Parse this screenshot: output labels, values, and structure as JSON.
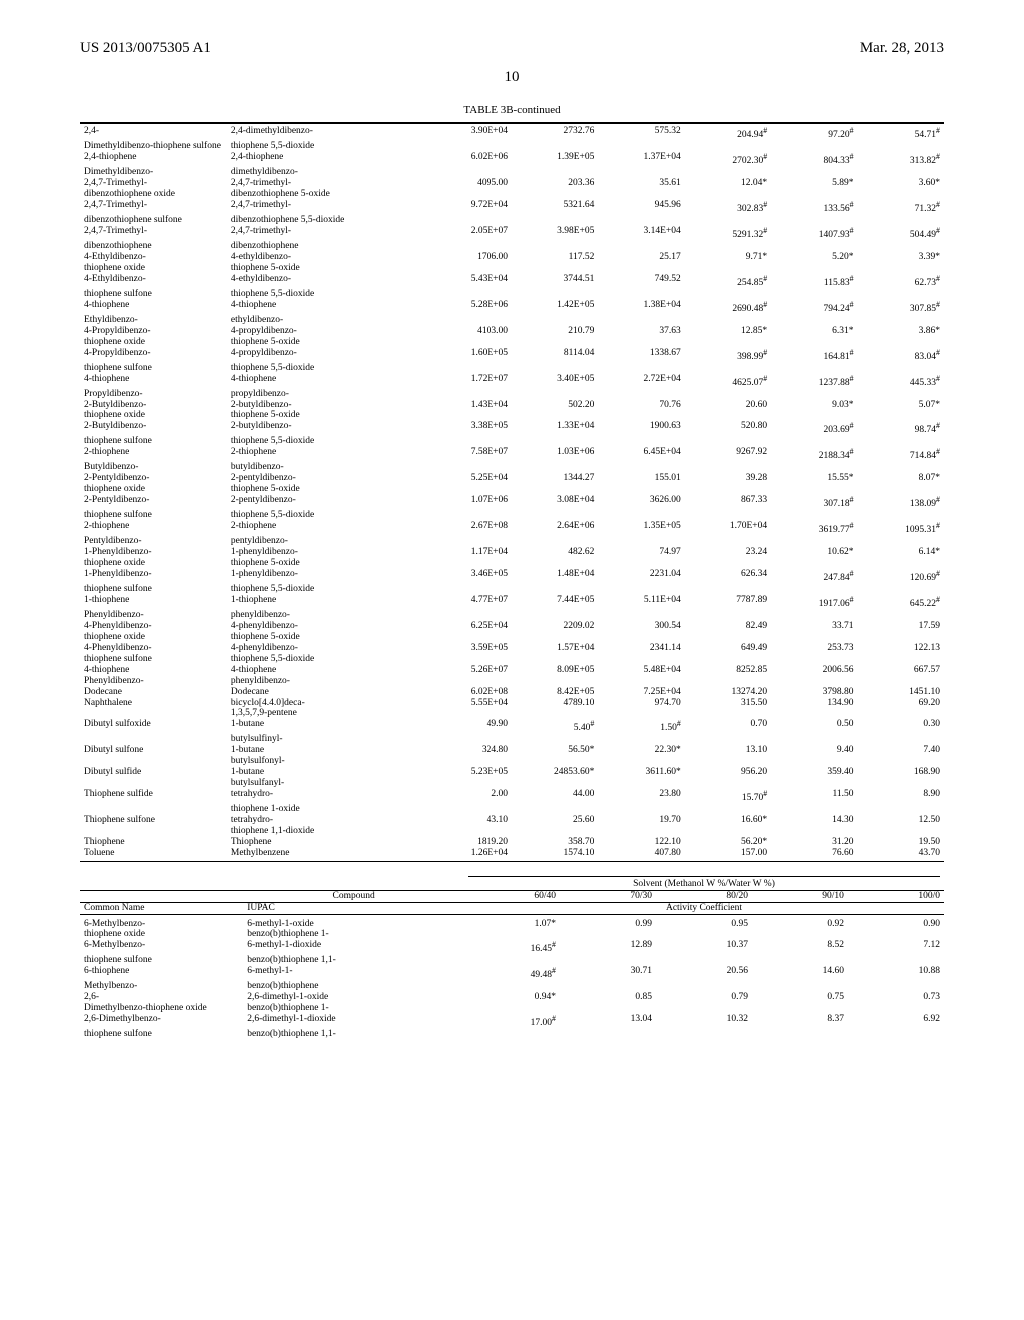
{
  "header": {
    "left": "US 2013/0075305 A1",
    "right": "Mar. 28, 2013"
  },
  "page_number": "10",
  "table_caption": "TABLE 3B-continued",
  "table1_rows": [
    {
      "c": "2,4-Dimethyldibenzo-thiophene sulfone",
      "i": "2,4-dimethyldibenzo-thiophene 5,5-dioxide",
      "v": [
        "3.90E+04",
        "2732.76",
        "575.32",
        "204.94#",
        "97.20#",
        "54.71#"
      ]
    },
    {
      "c": "2,4-Dimethyldibenzo-thiophene",
      "i": "2,4-dimethyldibenzo-thiophene",
      "v": [
        "6.02E+06",
        "1.39E+05",
        "1.37E+04",
        "2702.30#",
        "804.33#",
        "313.82#"
      ]
    },
    {
      "c": "2,4,7-Trimethyl-dibenzothiophene oxide",
      "i": "2,4,7-trimethyl-dibenzothiophene 5-oxide",
      "v": [
        "4095.00",
        "203.36",
        "35.61",
        "12.04*",
        "5.89*",
        "3.60*"
      ]
    },
    {
      "c": "2,4,7-Trimethyl-dibenzothiophene sulfone",
      "i": "2,4,7-trimethyl-dibenzothiophene 5,5-dioxide",
      "v": [
        "9.72E+04",
        "5321.64",
        "945.96",
        "302.83#",
        "133.56#",
        "71.32#"
      ]
    },
    {
      "c": "2,4,7-Trimethyl-dibenzothiophene",
      "i": "2,4,7-trimethyl-dibenzothiophene",
      "v": [
        "2.05E+07",
        "3.98E+05",
        "3.14E+04",
        "5291.32#",
        "1407.93#",
        "504.49#"
      ]
    },
    {
      "c": "4-Ethyldibenzo-thiophene oxide",
      "i": "4-ethyldibenzo-thiophene 5-oxide",
      "v": [
        "1706.00",
        "117.52",
        "25.17",
        "9.71*",
        "5.20*",
        "3.39*"
      ]
    },
    {
      "c": "4-Ethyldibenzo-thiophene sulfone",
      "i": "4-ethyldibenzo-thiophene 5,5-dioxide",
      "v": [
        "5.43E+04",
        "3744.51",
        "749.52",
        "254.85#",
        "115.83#",
        "62.73#"
      ]
    },
    {
      "c": "4-Ethyldibenzo-thiophene",
      "i": "4-ethyldibenzo-thiophene",
      "v": [
        "5.28E+06",
        "1.42E+05",
        "1.38E+04",
        "2690.48#",
        "794.24#",
        "307.85#"
      ]
    },
    {
      "c": "4-Propyldibenzo-thiophene oxide",
      "i": "4-propyldibenzo-thiophene 5-oxide",
      "v": [
        "4103.00",
        "210.79",
        "37.63",
        "12.85*",
        "6.31*",
        "3.86*"
      ]
    },
    {
      "c": "4-Propyldibenzo-thiophene sulfone",
      "i": "4-propyldibenzo-thiophene 5,5-dioxide",
      "v": [
        "1.60E+05",
        "8114.04",
        "1338.67",
        "398.99#",
        "164.81#",
        "83.04#"
      ]
    },
    {
      "c": "4-Propyldibenzo-thiophene",
      "i": "4-propyldibenzo-thiophene",
      "v": [
        "1.72E+07",
        "3.40E+05",
        "2.72E+04",
        "4625.07#",
        "1237.88#",
        "445.33#"
      ]
    },
    {
      "c": "2-Butyldibenzo-thiophene oxide",
      "i": "2-butyldibenzo-thiophene 5-oxide",
      "v": [
        "1.43E+04",
        "502.20",
        "70.76",
        "20.60",
        "9.03*",
        "5.07*"
      ]
    },
    {
      "c": "2-Butyldibenzo-thiophene sulfone",
      "i": "2-butyldibenzo-thiophene 5,5-dioxide",
      "v": [
        "3.38E+05",
        "1.33E+04",
        "1900.63",
        "520.80",
        "203.69#",
        "98.74#"
      ]
    },
    {
      "c": "2-Butyldibenzo-thiophene",
      "i": "2-butyldibenzo-thiophene",
      "v": [
        "7.58E+07",
        "1.03E+06",
        "6.45E+04",
        "9267.92",
        "2188.34#",
        "714.84#"
      ]
    },
    {
      "c": "2-Pentyldibenzo-thiophene oxide",
      "i": "2-pentyldibenzo-thiophene 5-oxide",
      "v": [
        "5.25E+04",
        "1344.27",
        "155.01",
        "39.28",
        "15.55*",
        "8.07*"
      ]
    },
    {
      "c": "2-Pentyldibenzo-thiophene sulfone",
      "i": "2-pentyldibenzo-thiophene 5,5-dioxide",
      "v": [
        "1.07E+06",
        "3.08E+04",
        "3626.00",
        "867.33",
        "307.18#",
        "138.09#"
      ]
    },
    {
      "c": "2-Pentyldibenzo-thiophene",
      "i": "2-pentyldibenzo-thiophene",
      "v": [
        "2.67E+08",
        "2.64E+06",
        "1.35E+05",
        "1.70E+04",
        "3619.77#",
        "1095.31#"
      ]
    },
    {
      "c": "1-Phenyldibenzo-thiophene oxide",
      "i": "1-phenyldibenzo-thiophene 5-oxide",
      "v": [
        "1.17E+04",
        "482.62",
        "74.97",
        "23.24",
        "10.62*",
        "6.14*"
      ]
    },
    {
      "c": "1-Phenyldibenzo-thiophene sulfone",
      "i": "1-phenyldibenzo-thiophene 5,5-dioxide",
      "v": [
        "3.46E+05",
        "1.48E+04",
        "2231.04",
        "626.34",
        "247.84#",
        "120.69#"
      ]
    },
    {
      "c": "1-Phenyldibenzo-thiophene",
      "i": "1-phenyldibenzo-thiophene",
      "v": [
        "4.77E+07",
        "7.44E+05",
        "5.11E+04",
        "7787.89",
        "1917.06#",
        "645.22#"
      ]
    },
    {
      "c": "4-Phenyldibenzo-thiophene oxide",
      "i": "4-phenyldibenzo-thiophene 5-oxide",
      "v": [
        "6.25E+04",
        "2209.02",
        "300.54",
        "82.49",
        "33.71",
        "17.59"
      ]
    },
    {
      "c": "4-Phenyldibenzo-thiophene sulfone",
      "i": "4-phenyldibenzo-thiophene 5,5-dioxide",
      "v": [
        "3.59E+05",
        "1.57E+04",
        "2341.14",
        "649.49",
        "253.73",
        "122.13"
      ]
    },
    {
      "c": "4-Phenyldibenzo-thiophene",
      "i": "4-phenyldibenzo-thiophene",
      "v": [
        "5.26E+07",
        "8.09E+05",
        "5.48E+04",
        "8252.85",
        "2006.56",
        "667.57"
      ]
    },
    {
      "c": "Dodecane",
      "i": "Dodecane",
      "v": [
        "6.02E+08",
        "8.42E+05",
        "7.25E+04",
        "13274.20",
        "3798.80",
        "1451.10"
      ]
    },
    {
      "c": "Naphthalene",
      "i": "bicyclo[4.4.0]deca-1,3,5,7,9-pentene",
      "v": [
        "5.55E+04",
        "4789.10",
        "974.70",
        "315.50",
        "134.90",
        "69.20"
      ]
    },
    {
      "c": "Dibutyl sulfoxide",
      "i": "1-butylsulfinyl-butane",
      "v": [
        "49.90",
        "5.40#",
        "1.50#",
        "0.70",
        "0.50",
        "0.30"
      ]
    },
    {
      "c": "Dibutyl sulfone",
      "i": "1-butylsulfonyl-butane",
      "v": [
        "324.80",
        "56.50*",
        "22.30*",
        "13.10",
        "9.40",
        "7.40"
      ]
    },
    {
      "c": "Dibutyl sulfide",
      "i": "1-butylsulfanyl-butane",
      "v": [
        "5.23E+05",
        "24853.60*",
        "3611.60*",
        "956.20",
        "359.40",
        "168.90"
      ]
    },
    {
      "c": "Thiophene sulfide",
      "i": "tetrahydro-thiophene 1-oxide",
      "v": [
        "2.00",
        "44.00",
        "23.80",
        "15.70#",
        "11.50",
        "8.90"
      ]
    },
    {
      "c": "Thiophene sulfone",
      "i": "tetrahydro-thiophene 1,1-dioxide",
      "v": [
        "43.10",
        "25.60",
        "19.70",
        "16.60*",
        "14.30",
        "12.50"
      ]
    },
    {
      "c": "Thiophene",
      "i": "Thiophene",
      "v": [
        "1819.20",
        "358.70",
        "122.10",
        "56.20*",
        "31.20",
        "19.50"
      ]
    },
    {
      "c": "Toluene",
      "i": "Methylbenzene",
      "v": [
        "1.26E+04",
        "1574.10",
        "407.80",
        "157.00",
        "76.60",
        "43.70"
      ]
    }
  ],
  "table2_headers": {
    "compound": "Compound",
    "common": "Common Name",
    "iupac": "IUPAC",
    "solvent_title": "Solvent (Methanol W %/Water W %)",
    "cols": [
      "60/40",
      "70/30",
      "80/20",
      "90/10",
      "100/0"
    ],
    "activity": "Activity Coefficient"
  },
  "table2_rows": [
    {
      "c": "6-Methylbenzo-thiophene oxide",
      "i": "6-methyl-1-benzo(b)thiophene 1-oxide",
      "v": [
        "1.07*",
        "0.99",
        "0.95",
        "0.92",
        "0.90"
      ]
    },
    {
      "c": "6-Methylbenzo-thiophene sulfone",
      "i": "6-methyl-1-benzo(b)thiophene 1,1-dioxide",
      "v": [
        "16.45#",
        "12.89",
        "10.37",
        "8.52",
        "7.12"
      ]
    },
    {
      "c": "6-Methylbenzo-thiophene",
      "i": "6-methyl-1-benzo(b)thiophene",
      "v": [
        "49.48#",
        "30.71",
        "20.56",
        "14.60",
        "10.88"
      ]
    },
    {
      "c": "2,6-Dimethylbenzo-thiophene oxide",
      "i": "2,6-dimethyl-1-benzo(b)thiophene 1-oxide",
      "v": [
        "0.94*",
        "0.85",
        "0.79",
        "0.75",
        "0.73"
      ]
    },
    {
      "c": "2,6-Dimethylbenzo-thiophene sulfone",
      "i": "2,6-dimethyl-1-benzo(b)thiophene 1,1-dioxide",
      "v": [
        "17.00#",
        "13.04",
        "10.32",
        "8.37",
        "6.92"
      ]
    }
  ]
}
